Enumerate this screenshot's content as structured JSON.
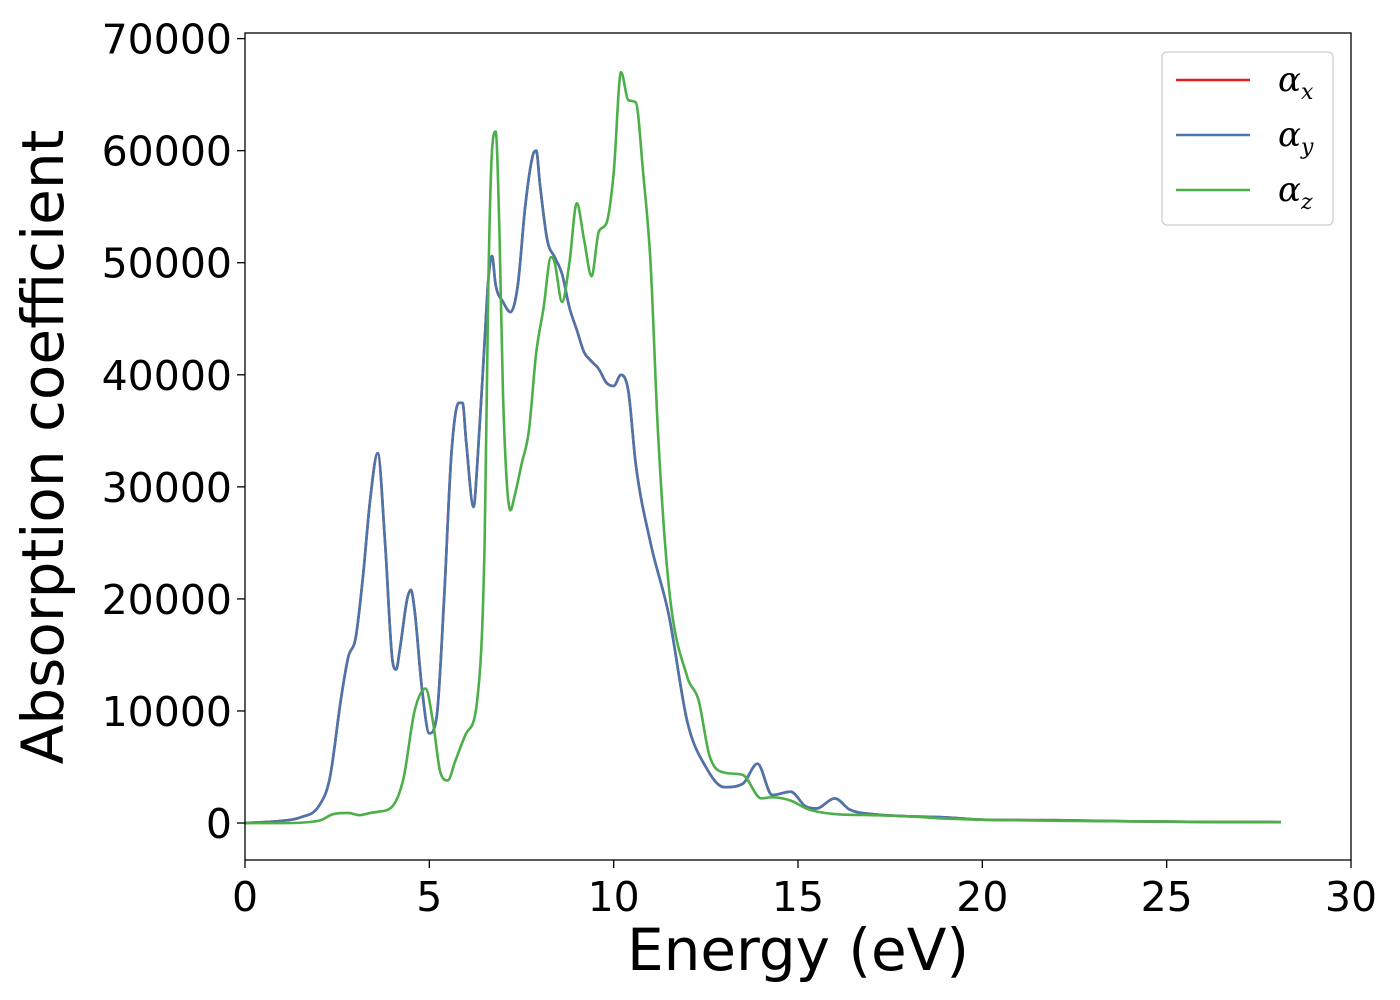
{
  "chart_data": {
    "type": "line",
    "title": "",
    "xlabel": "Energy (eV)",
    "ylabel": "Absorption coefficient",
    "xlim": [
      0,
      30
    ],
    "ylim": [
      -3300,
      70500
    ],
    "xticks": [
      "0",
      "5",
      "10",
      "15",
      "20",
      "25",
      "30"
    ],
    "yticks": [
      "0",
      "10000",
      "20000",
      "30000",
      "40000",
      "50000",
      "60000",
      "70000"
    ],
    "grid": false,
    "legend_position": "top-right",
    "series": [
      {
        "name": "αx",
        "legend_base": "α",
        "legend_sub": "x",
        "color": "#e41a1c",
        "x": [
          0,
          1,
          1.5,
          2,
          2.3,
          2.6,
          2.8,
          3.0,
          3.2,
          3.4,
          3.6,
          3.8,
          4.0,
          4.1,
          4.2,
          4.4,
          4.5,
          4.6,
          4.8,
          5.0,
          5.2,
          5.4,
          5.6,
          5.8,
          5.9,
          6.0,
          6.2,
          6.3,
          6.5,
          6.6,
          6.7,
          6.8,
          7.0,
          7.2,
          7.4,
          7.6,
          7.8,
          7.9,
          8.0,
          8.2,
          8.4,
          8.6,
          8.8,
          9.0,
          9.2,
          9.4,
          9.6,
          9.8,
          10.0,
          10.2,
          10.4,
          10.6,
          11.0,
          11.5,
          12.0,
          12.5,
          13.0,
          13.5,
          13.9,
          14.3,
          14.8,
          15.2,
          15.5,
          16.0,
          16.4,
          17.0,
          18.0,
          19.0,
          20.0,
          22.0,
          24.0,
          26.0,
          28.1
        ],
        "y": [
          0,
          200,
          500,
          1500,
          4000,
          11000,
          14800,
          16500,
          22000,
          29000,
          33000,
          25000,
          14500,
          13700,
          15500,
          20000,
          20800,
          19000,
          12000,
          8000,
          9500,
          20000,
          33000,
          37500,
          37500,
          34000,
          28200,
          32000,
          43000,
          48500,
          50600,
          48000,
          46500,
          45600,
          48000,
          55000,
          59500,
          60000,
          57000,
          52000,
          50500,
          49000,
          46000,
          44000,
          42000,
          41200,
          40500,
          39300,
          39000,
          40000,
          38500,
          32000,
          25000,
          18500,
          9000,
          5000,
          3200,
          3500,
          5300,
          2500,
          2800,
          1500,
          1300,
          2200,
          1200,
          800,
          600,
          500,
          300,
          250,
          150,
          100,
          80
        ]
      },
      {
        "name": "αy",
        "legend_base": "α",
        "legend_sub": "y",
        "color": "#4a76ab",
        "x": [
          0,
          1,
          1.5,
          2,
          2.3,
          2.6,
          2.8,
          3.0,
          3.2,
          3.4,
          3.6,
          3.8,
          4.0,
          4.1,
          4.2,
          4.4,
          4.5,
          4.6,
          4.8,
          5.0,
          5.2,
          5.4,
          5.6,
          5.8,
          5.9,
          6.0,
          6.2,
          6.3,
          6.5,
          6.6,
          6.7,
          6.8,
          7.0,
          7.2,
          7.4,
          7.6,
          7.8,
          7.9,
          8.0,
          8.2,
          8.4,
          8.6,
          8.8,
          9.0,
          9.2,
          9.4,
          9.6,
          9.8,
          10.0,
          10.2,
          10.4,
          10.6,
          11.0,
          11.5,
          12.0,
          12.5,
          13.0,
          13.5,
          13.9,
          14.3,
          14.8,
          15.2,
          15.5,
          16.0,
          16.4,
          17.0,
          18.0,
          19.0,
          20.0,
          22.0,
          24.0,
          26.0,
          28.1
        ],
        "y": [
          0,
          200,
          500,
          1500,
          4000,
          11000,
          14800,
          16500,
          22000,
          29000,
          33000,
          25000,
          14500,
          13700,
          15500,
          20000,
          20800,
          19000,
          12000,
          8000,
          9500,
          20000,
          33000,
          37500,
          37500,
          34000,
          28200,
          32000,
          43000,
          48500,
          50600,
          48000,
          46500,
          45600,
          48000,
          55000,
          59500,
          60000,
          57000,
          52000,
          50500,
          49000,
          46000,
          44000,
          42000,
          41200,
          40500,
          39300,
          39000,
          40000,
          38500,
          32000,
          25000,
          18500,
          9000,
          5000,
          3200,
          3500,
          5300,
          2500,
          2800,
          1500,
          1300,
          2200,
          1200,
          800,
          600,
          500,
          300,
          250,
          150,
          100,
          80
        ]
      },
      {
        "name": "αz",
        "legend_base": "α",
        "legend_sub": "z",
        "color": "#4daf4a",
        "x": [
          0,
          1,
          2,
          2.4,
          2.8,
          3.1,
          3.4,
          3.6,
          4.0,
          4.3,
          4.6,
          4.9,
          5.1,
          5.3,
          5.5,
          5.7,
          6.0,
          6.3,
          6.5,
          6.6,
          6.7,
          6.8,
          6.9,
          7.0,
          7.2,
          7.3,
          7.5,
          7.7,
          7.9,
          8.1,
          8.3,
          8.4,
          8.6,
          8.8,
          9.0,
          9.2,
          9.4,
          9.6,
          9.8,
          10.0,
          10.2,
          10.4,
          10.6,
          10.8,
          11.0,
          11.2,
          11.5,
          12.0,
          12.3,
          12.6,
          13.0,
          13.5,
          14.0,
          14.3,
          14.8,
          15.3,
          16.0,
          17.0,
          18.0,
          19.0,
          20.0,
          22.0,
          24.0,
          26.0,
          28.1
        ],
        "y": [
          0,
          0,
          200,
          800,
          900,
          700,
          900,
          1000,
          1500,
          4000,
          10000,
          12000,
          9000,
          4500,
          3800,
          5500,
          8000,
          11000,
          25000,
          48000,
          60000,
          61700,
          53000,
          38000,
          27900,
          29000,
          32000,
          35000,
          42000,
          46000,
          50500,
          50000,
          46500,
          50000,
          55300,
          52000,
          48800,
          52800,
          53500,
          58000,
          67000,
          64500,
          64300,
          58000,
          50000,
          35000,
          21000,
          13000,
          11000,
          6000,
          4500,
          4300,
          2200,
          2300,
          2000,
          1200,
          800,
          700,
          600,
          400,
          300,
          200,
          150,
          100,
          80
        ]
      }
    ]
  }
}
